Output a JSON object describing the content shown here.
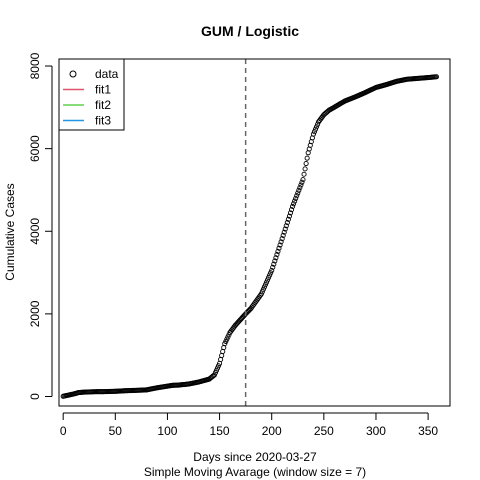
{
  "chart_data": {
    "type": "scatter",
    "title": "GUM / Logistic",
    "xlabel": "Days since 2020-03-27",
    "xlabel2": "Simple Moving Avarage (window size = 7)",
    "ylabel": "Cumulative Cases",
    "xlim": [
      -4,
      371
    ],
    "ylim": [
      -230,
      8170
    ],
    "xticks": [
      0,
      50,
      100,
      150,
      200,
      250,
      300,
      350
    ],
    "yticks": [
      0,
      2000,
      4000,
      6000,
      8000
    ],
    "vline_x": 175,
    "vline_style": "dashed",
    "vline_color": "#666666",
    "grid": false,
    "legend_position": "top-left",
    "legend": [
      {
        "label": "data",
        "symbol": "circle",
        "color": "#000000"
      },
      {
        "label": "fit1",
        "symbol": "line",
        "color": "#df536b"
      },
      {
        "label": "fit2",
        "symbol": "line",
        "color": "#61d04f"
      },
      {
        "label": "fit3",
        "symbol": "line",
        "color": "#2297e6"
      }
    ],
    "series": [
      {
        "symbol": "open-circle",
        "color": "#000000",
        "x": [
          0,
          10,
          15,
          20,
          30,
          40,
          50,
          60,
          70,
          80,
          90,
          100,
          105,
          110,
          120,
          130,
          140,
          145,
          150,
          155,
          160,
          165,
          170,
          175,
          180,
          190,
          200,
          210,
          220,
          230,
          235,
          240,
          245,
          250,
          255,
          260,
          270,
          280,
          290,
          300,
          310,
          320,
          330,
          340,
          350,
          358
        ],
        "y": [
          5,
          60,
          95,
          105,
          115,
          118,
          125,
          140,
          148,
          160,
          210,
          250,
          270,
          275,
          300,
          350,
          420,
          520,
          800,
          1280,
          1550,
          1720,
          1860,
          2000,
          2130,
          2480,
          3050,
          3820,
          4600,
          5250,
          5900,
          6350,
          6650,
          6820,
          6930,
          7000,
          7150,
          7250,
          7360,
          7480,
          7550,
          7630,
          7680,
          7700,
          7720,
          7740
        ]
      }
    ]
  }
}
